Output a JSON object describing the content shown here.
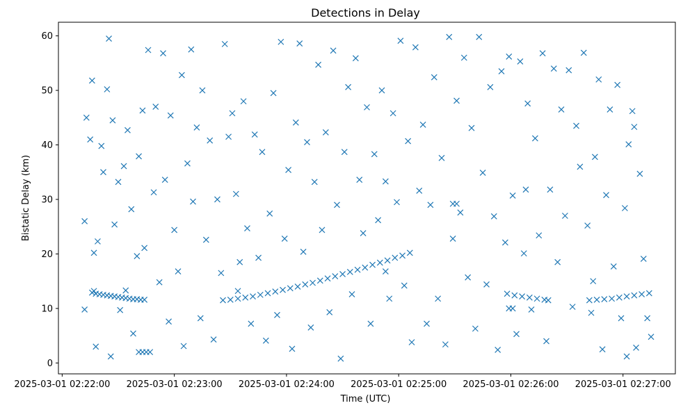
{
  "chart_data": {
    "type": "scatter",
    "title": "Detections in Delay",
    "xlabel": "Time (UTC)",
    "ylabel": "Bistatic Delay (km)",
    "marker": "x",
    "color": "#1f77b4",
    "grid": false,
    "legend": "none",
    "x_unit": "UTC datetime",
    "xlim": [
      "2025-03-01 02:21:58",
      "2025-03-01 02:27:28"
    ],
    "ylim": [
      -2.0,
      62.5
    ],
    "x_ticks": [
      "2025-03-01 02:22:00",
      "2025-03-01 02:23:00",
      "2025-03-01 02:24:00",
      "2025-03-01 02:25:00",
      "2025-03-01 02:26:00",
      "2025-03-01 02:27:00"
    ],
    "y_ticks": [
      0,
      10,
      20,
      30,
      40,
      50,
      60
    ],
    "series": [
      {
        "points": [
          [
            "2025-03-01 02:22:16",
            12.9
          ],
          [
            "2025-03-01 02:22:18",
            12.7
          ],
          [
            "2025-03-01 02:22:20",
            12.6
          ],
          [
            "2025-03-01 02:22:22",
            12.5
          ],
          [
            "2025-03-01 02:22:24",
            12.4
          ],
          [
            "2025-03-01 02:22:26",
            12.3
          ],
          [
            "2025-03-01 02:22:28",
            12.2
          ],
          [
            "2025-03-01 02:22:30",
            12.1
          ],
          [
            "2025-03-01 02:22:32",
            12.0
          ],
          [
            "2025-03-01 02:22:34",
            11.9
          ],
          [
            "2025-03-01 02:22:36",
            11.8
          ],
          [
            "2025-03-01 02:22:38",
            11.7
          ],
          [
            "2025-03-01 02:22:40",
            11.7
          ],
          [
            "2025-03-01 02:22:42",
            11.6
          ],
          [
            "2025-03-01 02:22:44",
            11.6
          ],
          [
            "2025-03-01 02:23:26",
            11.5
          ],
          [
            "2025-03-01 02:23:30",
            11.6
          ],
          [
            "2025-03-01 02:23:34",
            11.8
          ],
          [
            "2025-03-01 02:23:38",
            12.0
          ],
          [
            "2025-03-01 02:23:42",
            12.2
          ],
          [
            "2025-03-01 02:23:46",
            12.5
          ],
          [
            "2025-03-01 02:23:50",
            12.8
          ],
          [
            "2025-03-01 02:23:54",
            13.1
          ],
          [
            "2025-03-01 02:23:58",
            13.4
          ],
          [
            "2025-03-01 02:24:02",
            13.7
          ],
          [
            "2025-03-01 02:24:06",
            14.0
          ],
          [
            "2025-03-01 02:24:10",
            14.4
          ],
          [
            "2025-03-01 02:24:14",
            14.7
          ],
          [
            "2025-03-01 02:24:18",
            15.1
          ],
          [
            "2025-03-01 02:24:22",
            15.5
          ],
          [
            "2025-03-01 02:24:26",
            15.9
          ],
          [
            "2025-03-01 02:24:30",
            16.3
          ],
          [
            "2025-03-01 02:24:34",
            16.7
          ],
          [
            "2025-03-01 02:24:38",
            17.1
          ],
          [
            "2025-03-01 02:24:42",
            17.5
          ],
          [
            "2025-03-01 02:24:46",
            18.0
          ],
          [
            "2025-03-01 02:24:50",
            18.4
          ],
          [
            "2025-03-01 02:24:54",
            18.8
          ],
          [
            "2025-03-01 02:24:58",
            19.3
          ],
          [
            "2025-03-01 02:25:02",
            19.7
          ],
          [
            "2025-03-01 02:25:06",
            20.2
          ],
          [
            "2025-03-01 02:25:58",
            12.7
          ],
          [
            "2025-03-01 02:26:02",
            12.4
          ],
          [
            "2025-03-01 02:26:06",
            12.2
          ],
          [
            "2025-03-01 02:26:10",
            12.0
          ],
          [
            "2025-03-01 02:26:14",
            11.8
          ],
          [
            "2025-03-01 02:26:18",
            11.6
          ],
          [
            "2025-03-01 02:26:20",
            11.5
          ],
          [
            "2025-03-01 02:26:42",
            11.5
          ],
          [
            "2025-03-01 02:26:46",
            11.6
          ],
          [
            "2025-03-01 02:26:50",
            11.7
          ],
          [
            "2025-03-01 02:26:54",
            11.8
          ],
          [
            "2025-03-01 02:26:58",
            12.0
          ],
          [
            "2025-03-01 02:27:02",
            12.2
          ],
          [
            "2025-03-01 02:27:06",
            12.4
          ],
          [
            "2025-03-01 02:27:10",
            12.6
          ],
          [
            "2025-03-01 02:27:14",
            12.8
          ],
          [
            "2025-03-01 02:22:12",
            26.0
          ],
          [
            "2025-03-01 02:22:12",
            9.8
          ],
          [
            "2025-03-01 02:22:13",
            45.0
          ],
          [
            "2025-03-01 02:22:15",
            41.0
          ],
          [
            "2025-03-01 02:22:16",
            51.8
          ],
          [
            "2025-03-01 02:22:17",
            20.2
          ],
          [
            "2025-03-01 02:22:17",
            13.2
          ],
          [
            "2025-03-01 02:22:18",
            3.0
          ],
          [
            "2025-03-01 02:22:19",
            22.3
          ],
          [
            "2025-03-01 02:22:21",
            39.8
          ],
          [
            "2025-03-01 02:22:22",
            35.0
          ],
          [
            "2025-03-01 02:22:24",
            50.2
          ],
          [
            "2025-03-01 02:22:25",
            59.5
          ],
          [
            "2025-03-01 02:22:26",
            1.2
          ],
          [
            "2025-03-01 02:22:27",
            44.5
          ],
          [
            "2025-03-01 02:22:28",
            25.4
          ],
          [
            "2025-03-01 02:22:30",
            33.2
          ],
          [
            "2025-03-01 02:22:31",
            9.7
          ],
          [
            "2025-03-01 02:22:33",
            36.1
          ],
          [
            "2025-03-01 02:22:34",
            13.3
          ],
          [
            "2025-03-01 02:22:35",
            42.7
          ],
          [
            "2025-03-01 02:22:37",
            28.2
          ],
          [
            "2025-03-01 02:22:38",
            5.4
          ],
          [
            "2025-03-01 02:22:40",
            19.6
          ],
          [
            "2025-03-01 02:22:41",
            37.9
          ],
          [
            "2025-03-01 02:22:43",
            46.3
          ],
          [
            "2025-03-01 02:22:44",
            21.1
          ],
          [
            "2025-03-01 02:22:46",
            57.4
          ],
          [
            "2025-03-01 02:22:47",
            2.0
          ],
          [
            "2025-03-01 02:22:49",
            31.3
          ],
          [
            "2025-03-01 02:22:50",
            47.0
          ],
          [
            "2025-03-01 02:22:52",
            14.8
          ],
          [
            "2025-03-01 02:22:54",
            56.8
          ],
          [
            "2025-03-01 02:22:55",
            33.6
          ],
          [
            "2025-03-01 02:22:57",
            7.6
          ],
          [
            "2025-03-01 02:22:58",
            45.4
          ],
          [
            "2025-03-01 02:23:00",
            24.4
          ],
          [
            "2025-03-01 02:23:02",
            16.8
          ],
          [
            "2025-03-01 02:23:04",
            52.8
          ],
          [
            "2025-03-01 02:23:05",
            3.1
          ],
          [
            "2025-03-01 02:23:07",
            36.6
          ],
          [
            "2025-03-01 02:23:09",
            57.5
          ],
          [
            "2025-03-01 02:23:10",
            29.6
          ],
          [
            "2025-03-01 02:23:12",
            43.2
          ],
          [
            "2025-03-01 02:23:14",
            8.2
          ],
          [
            "2025-03-01 02:23:15",
            50.0
          ],
          [
            "2025-03-01 02:23:17",
            22.6
          ],
          [
            "2025-03-01 02:23:19",
            40.8
          ],
          [
            "2025-03-01 02:23:21",
            4.3
          ],
          [
            "2025-03-01 02:23:23",
            30.0
          ],
          [
            "2025-03-01 02:23:25",
            16.5
          ],
          [
            "2025-03-01 02:23:27",
            58.5
          ],
          [
            "2025-03-01 02:23:29",
            41.5
          ],
          [
            "2025-03-01 02:23:31",
            45.8
          ],
          [
            "2025-03-01 02:23:33",
            31.0
          ],
          [
            "2025-03-01 02:23:35",
            18.5
          ],
          [
            "2025-03-01 02:23:37",
            48.0
          ],
          [
            "2025-03-01 02:23:39",
            24.7
          ],
          [
            "2025-03-01 02:23:41",
            7.2
          ],
          [
            "2025-03-01 02:23:43",
            41.9
          ],
          [
            "2025-03-01 02:23:45",
            19.3
          ],
          [
            "2025-03-01 02:23:47",
            38.7
          ],
          [
            "2025-03-01 02:23:49",
            4.1
          ],
          [
            "2025-03-01 02:23:51",
            27.4
          ],
          [
            "2025-03-01 02:23:53",
            49.5
          ],
          [
            "2025-03-01 02:23:55",
            8.8
          ],
          [
            "2025-03-01 02:23:57",
            58.9
          ],
          [
            "2025-03-01 02:23:59",
            22.8
          ],
          [
            "2025-03-01 02:24:01",
            35.4
          ],
          [
            "2025-03-01 02:24:03",
            2.6
          ],
          [
            "2025-03-01 02:24:05",
            44.1
          ],
          [
            "2025-03-01 02:24:07",
            58.6
          ],
          [
            "2025-03-01 02:24:09",
            20.4
          ],
          [
            "2025-03-01 02:24:11",
            40.5
          ],
          [
            "2025-03-01 02:24:13",
            6.5
          ],
          [
            "2025-03-01 02:24:15",
            33.2
          ],
          [
            "2025-03-01 02:24:17",
            54.7
          ],
          [
            "2025-03-01 02:24:19",
            24.4
          ],
          [
            "2025-03-01 02:24:21",
            42.3
          ],
          [
            "2025-03-01 02:24:23",
            9.3
          ],
          [
            "2025-03-01 02:24:25",
            57.3
          ],
          [
            "2025-03-01 02:24:27",
            29.0
          ],
          [
            "2025-03-01 02:24:29",
            0.8
          ],
          [
            "2025-03-01 02:24:31",
            38.7
          ],
          [
            "2025-03-01 02:24:33",
            50.6
          ],
          [
            "2025-03-01 02:24:35",
            12.6
          ],
          [
            "2025-03-01 02:24:37",
            55.9
          ],
          [
            "2025-03-01 02:24:39",
            33.6
          ],
          [
            "2025-03-01 02:24:41",
            23.8
          ],
          [
            "2025-03-01 02:24:43",
            46.9
          ],
          [
            "2025-03-01 02:24:45",
            7.2
          ],
          [
            "2025-03-01 02:24:47",
            38.3
          ],
          [
            "2025-03-01 02:24:49",
            26.2
          ],
          [
            "2025-03-01 02:24:51",
            50.0
          ],
          [
            "2025-03-01 02:24:53",
            33.3
          ],
          [
            "2025-03-01 02:24:55",
            11.8
          ],
          [
            "2025-03-01 02:24:57",
            45.8
          ],
          [
            "2025-03-01 02:24:59",
            29.5
          ],
          [
            "2025-03-01 02:25:01",
            59.1
          ],
          [
            "2025-03-01 02:25:03",
            14.2
          ],
          [
            "2025-03-01 02:25:05",
            40.7
          ],
          [
            "2025-03-01 02:25:07",
            3.8
          ],
          [
            "2025-03-01 02:25:09",
            57.9
          ],
          [
            "2025-03-01 02:25:11",
            31.6
          ],
          [
            "2025-03-01 02:25:13",
            43.7
          ],
          [
            "2025-03-01 02:25:15",
            7.2
          ],
          [
            "2025-03-01 02:25:17",
            29.0
          ],
          [
            "2025-03-01 02:25:19",
            52.4
          ],
          [
            "2025-03-01 02:25:21",
            11.8
          ],
          [
            "2025-03-01 02:25:23",
            37.6
          ],
          [
            "2025-03-01 02:25:25",
            3.4
          ],
          [
            "2025-03-01 02:25:27",
            59.8
          ],
          [
            "2025-03-01 02:25:29",
            22.8
          ],
          [
            "2025-03-01 02:25:31",
            48.1
          ],
          [
            "2025-03-01 02:25:33",
            27.6
          ],
          [
            "2025-03-01 02:25:35",
            56.0
          ],
          [
            "2025-03-01 02:25:37",
            15.7
          ],
          [
            "2025-03-01 02:25:39",
            43.1
          ],
          [
            "2025-03-01 02:25:41",
            6.3
          ],
          [
            "2025-03-01 02:25:43",
            59.8
          ],
          [
            "2025-03-01 02:25:45",
            34.9
          ],
          [
            "2025-03-01 02:25:47",
            14.4
          ],
          [
            "2025-03-01 02:25:49",
            50.6
          ],
          [
            "2025-03-01 02:25:51",
            26.9
          ],
          [
            "2025-03-01 02:25:53",
            2.4
          ],
          [
            "2025-03-01 02:25:55",
            53.5
          ],
          [
            "2025-03-01 02:25:57",
            22.1
          ],
          [
            "2025-03-01 02:25:59",
            56.2
          ],
          [
            "2025-03-01 02:26:01",
            30.7
          ],
          [
            "2025-03-01 02:26:03",
            5.3
          ],
          [
            "2025-03-01 02:26:05",
            55.3
          ],
          [
            "2025-03-01 02:26:07",
            20.1
          ],
          [
            "2025-03-01 02:26:09",
            47.6
          ],
          [
            "2025-03-01 02:26:11",
            9.8
          ],
          [
            "2025-03-01 02:26:13",
            41.2
          ],
          [
            "2025-03-01 02:26:15",
            23.4
          ],
          [
            "2025-03-01 02:26:17",
            56.8
          ],
          [
            "2025-03-01 02:26:19",
            4.0
          ],
          [
            "2025-03-01 02:26:21",
            31.8
          ],
          [
            "2025-03-01 02:26:23",
            54.0
          ],
          [
            "2025-03-01 02:26:25",
            18.5
          ],
          [
            "2025-03-01 02:26:27",
            46.5
          ],
          [
            "2025-03-01 02:26:29",
            27.0
          ],
          [
            "2025-03-01 02:26:31",
            53.7
          ],
          [
            "2025-03-01 02:26:33",
            10.3
          ],
          [
            "2025-03-01 02:26:35",
            43.5
          ],
          [
            "2025-03-01 02:26:37",
            36.0
          ],
          [
            "2025-03-01 02:26:39",
            56.9
          ],
          [
            "2025-03-01 02:26:41",
            25.2
          ],
          [
            "2025-03-01 02:26:43",
            9.2
          ],
          [
            "2025-03-01 02:26:45",
            37.8
          ],
          [
            "2025-03-01 02:26:47",
            52.0
          ],
          [
            "2025-03-01 02:26:49",
            2.5
          ],
          [
            "2025-03-01 02:26:51",
            30.8
          ],
          [
            "2025-03-01 02:26:53",
            46.5
          ],
          [
            "2025-03-01 02:26:55",
            17.7
          ],
          [
            "2025-03-01 02:26:57",
            51.0
          ],
          [
            "2025-03-01 02:26:59",
            8.2
          ],
          [
            "2025-03-01 02:27:01",
            28.4
          ],
          [
            "2025-03-01 02:27:03",
            40.1
          ],
          [
            "2025-03-01 02:27:05",
            46.2
          ],
          [
            "2025-03-01 02:27:07",
            2.8
          ],
          [
            "2025-03-01 02:27:09",
            34.7
          ],
          [
            "2025-03-01 02:27:11",
            19.1
          ],
          [
            "2025-03-01 02:27:13",
            8.2
          ],
          [
            "2025-03-01 02:27:15",
            4.8
          ],
          [
            "2025-03-01 02:27:02",
            1.2
          ],
          [
            "2025-03-01 02:27:06",
            43.3
          ],
          [
            "2025-03-01 02:26:44",
            15.0
          ],
          [
            "2025-03-01 02:26:08",
            31.8
          ],
          [
            "2025-03-01 02:22:41",
            2.0
          ],
          [
            "2025-03-01 02:22:43",
            2.0
          ],
          [
            "2025-03-01 02:22:45",
            2.0
          ],
          [
            "2025-03-01 02:25:29",
            29.2
          ],
          [
            "2025-03-01 02:25:31",
            29.2
          ],
          [
            "2025-03-01 02:25:59",
            10.0
          ],
          [
            "2025-03-01 02:26:01",
            10.0
          ],
          [
            "2025-03-01 02:23:34",
            13.2
          ],
          [
            "2025-03-01 02:24:53",
            16.8
          ]
        ]
      }
    ]
  }
}
